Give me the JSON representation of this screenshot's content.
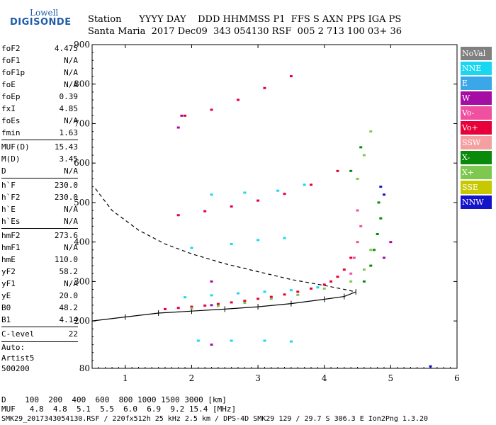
{
  "logo": {
    "line1": "Lowell",
    "line2": "DIGISONDE"
  },
  "header": {
    "labels": "Station      YYYY DAY    DDD HHMMSS P1  FFS S AXN PPS IGA PS",
    "values": "Santa Maria  2017 Dec09  343 054130 RSF  005 2 713 100 03+ 36"
  },
  "params": [
    {
      "k": "foF2",
      "v": "4.475"
    },
    {
      "k": "foF1",
      "v": "N/A"
    },
    {
      "k": "foF1p",
      "v": "N/A"
    },
    {
      "k": "foE",
      "v": "N/A"
    },
    {
      "k": "foEp",
      "v": "0.39"
    },
    {
      "k": "fxI",
      "v": "4.85"
    },
    {
      "k": "foEs",
      "v": "N/A"
    },
    {
      "k": "fmin",
      "v": "1.63"
    },
    {
      "k": "MUF(D)",
      "v": "15.43"
    },
    {
      "k": "M(D)",
      "v": "3.45"
    },
    {
      "k": "D",
      "v": "N/A"
    },
    {
      "k": "h`F",
      "v": "230.0"
    },
    {
      "k": "h`F2",
      "v": "230.0"
    },
    {
      "k": "h`E",
      "v": "N/A"
    },
    {
      "k": "h`Es",
      "v": "N/A"
    },
    {
      "k": "hmF2",
      "v": "273.6"
    },
    {
      "k": "hmF1",
      "v": "N/A"
    },
    {
      "k": "hmE",
      "v": "110.0"
    },
    {
      "k": "yF2",
      "v": "58.2"
    },
    {
      "k": "yF1",
      "v": "N/A"
    },
    {
      "k": "yE",
      "v": "20.0"
    },
    {
      "k": "B0",
      "v": "48.2"
    },
    {
      "k": "B1",
      "v": "4.14"
    },
    {
      "k": "C-level",
      "v": "22"
    }
  ],
  "auto": {
    "l1": "Auto:",
    "l2": "Artist5",
    "l3": "500200"
  },
  "legend": [
    {
      "name": "NoVal",
      "color": "#808080"
    },
    {
      "name": "NNE",
      "color": "#19d7f0"
    },
    {
      "name": "E",
      "color": "#3aa7e8"
    },
    {
      "name": "W",
      "color": "#a50ea5"
    },
    {
      "name": "Vo-",
      "color": "#f050a0"
    },
    {
      "name": "Vo+",
      "color": "#e8003a"
    },
    {
      "name": "SSW",
      "color": "#f4a0a0"
    },
    {
      "name": "X-",
      "color": "#0a8a0a"
    },
    {
      "name": "X+",
      "color": "#7ec850"
    },
    {
      "name": "SSE",
      "color": "#c8c800"
    },
    {
      "name": "NNW",
      "color": "#1414c8"
    }
  ],
  "footer": {
    "l1": "D    100  200  400  600  800 1000 1500 3000 [km]",
    "l2": "MUF   4.8  4.8  5.1  5.5  6.0  6.9  9.2 15.4 [MHz]",
    "l3": "SMK29_2017343054130.RSF / 220fx512h 25 kHz 2.5 km / DPS-4D SMK29 129 / 29.7 S 306.3 E Ion2Png 1.3.20"
  },
  "chart_data": {
    "type": "scatter",
    "xlim": [
      0.5,
      6
    ],
    "ylim": [
      80,
      900
    ],
    "xticks": [
      "1",
      "2",
      "3",
      "4",
      "5",
      "6"
    ],
    "yticks": [
      "80",
      "200",
      "300",
      "400",
      "500",
      "600",
      "700",
      "800",
      "900"
    ],
    "series": [
      {
        "name": "Vo+",
        "color": "#e8003a",
        "points": [
          [
            1.6,
            230
          ],
          [
            1.8,
            233
          ],
          [
            2.0,
            236
          ],
          [
            2.2,
            239
          ],
          [
            2.4,
            243
          ],
          [
            2.6,
            247
          ],
          [
            2.8,
            251
          ],
          [
            3.0,
            256
          ],
          [
            3.2,
            261
          ],
          [
            3.4,
            267
          ],
          [
            3.6,
            274
          ],
          [
            3.8,
            282
          ],
          [
            4.0,
            292
          ],
          [
            4.1,
            300
          ],
          [
            4.2,
            312
          ],
          [
            4.3,
            330
          ],
          [
            4.4,
            360
          ],
          [
            1.8,
            468
          ],
          [
            2.2,
            478
          ],
          [
            2.6,
            490
          ],
          [
            3.0,
            505
          ],
          [
            3.4,
            522
          ],
          [
            3.8,
            545
          ],
          [
            4.2,
            580
          ],
          [
            1.9,
            720
          ],
          [
            2.3,
            735
          ],
          [
            2.7,
            760
          ],
          [
            3.1,
            790
          ],
          [
            3.5,
            820
          ]
        ]
      },
      {
        "name": "X+",
        "color": "#7ec850",
        "points": [
          [
            2.0,
            232
          ],
          [
            2.4,
            238
          ],
          [
            2.8,
            246
          ],
          [
            3.2,
            256
          ],
          [
            3.6,
            266
          ],
          [
            4.0,
            282
          ],
          [
            4.4,
            300
          ],
          [
            4.6,
            330
          ],
          [
            4.7,
            380
          ],
          [
            4.5,
            560
          ],
          [
            4.6,
            620
          ],
          [
            4.7,
            680
          ]
        ]
      },
      {
        "name": "X-",
        "color": "#0a8a0a",
        "points": [
          [
            4.6,
            300
          ],
          [
            4.7,
            340
          ],
          [
            4.75,
            380
          ],
          [
            4.8,
            420
          ],
          [
            4.85,
            460
          ],
          [
            4.82,
            500
          ],
          [
            4.4,
            580
          ],
          [
            4.55,
            640
          ]
        ]
      },
      {
        "name": "NNE",
        "color": "#19d7f0",
        "points": [
          [
            1.9,
            260
          ],
          [
            2.3,
            265
          ],
          [
            2.7,
            270
          ],
          [
            3.1,
            274
          ],
          [
            3.5,
            278
          ],
          [
            3.9,
            285
          ],
          [
            2.3,
            520
          ],
          [
            2.8,
            525
          ],
          [
            3.3,
            530
          ],
          [
            3.7,
            545
          ],
          [
            2.0,
            385
          ],
          [
            2.6,
            395
          ],
          [
            3.0,
            405
          ],
          [
            3.4,
            410
          ],
          [
            2.1,
            150
          ],
          [
            2.6,
            150
          ],
          [
            3.1,
            150
          ],
          [
            3.5,
            148
          ]
        ]
      },
      {
        "name": "Vo-",
        "color": "#f050a0",
        "points": [
          [
            4.4,
            320
          ],
          [
            4.45,
            360
          ],
          [
            4.5,
            400
          ],
          [
            4.55,
            440
          ],
          [
            4.5,
            480
          ]
        ]
      },
      {
        "name": "W",
        "color": "#a50ea5",
        "points": [
          [
            1.8,
            690
          ],
          [
            1.85,
            720
          ],
          [
            2.3,
            300
          ],
          [
            2.3,
            240
          ],
          [
            2.3,
            140
          ],
          [
            4.9,
            360
          ],
          [
            5.0,
            400
          ]
        ]
      },
      {
        "name": "NNW",
        "color": "#1414c8",
        "points": [
          [
            4.9,
            520
          ],
          [
            4.85,
            540
          ],
          [
            5.6,
            85
          ]
        ]
      }
    ],
    "trace": [
      [
        0.5,
        200
      ],
      [
        1.0,
        210
      ],
      [
        1.5,
        220
      ],
      [
        2.0,
        225
      ],
      [
        2.5,
        230
      ],
      [
        3.0,
        236
      ],
      [
        3.5,
        244
      ],
      [
        4.0,
        255
      ],
      [
        4.3,
        262
      ],
      [
        4.475,
        273.6
      ]
    ],
    "profile": [
      [
        0.55,
        535
      ],
      [
        0.8,
        480
      ],
      [
        1.2,
        430
      ],
      [
        1.6,
        395
      ],
      [
        2.0,
        370
      ],
      [
        2.5,
        345
      ],
      [
        3.0,
        325
      ],
      [
        3.5,
        305
      ],
      [
        4.0,
        290
      ],
      [
        4.3,
        280
      ],
      [
        4.475,
        273.6
      ]
    ]
  }
}
